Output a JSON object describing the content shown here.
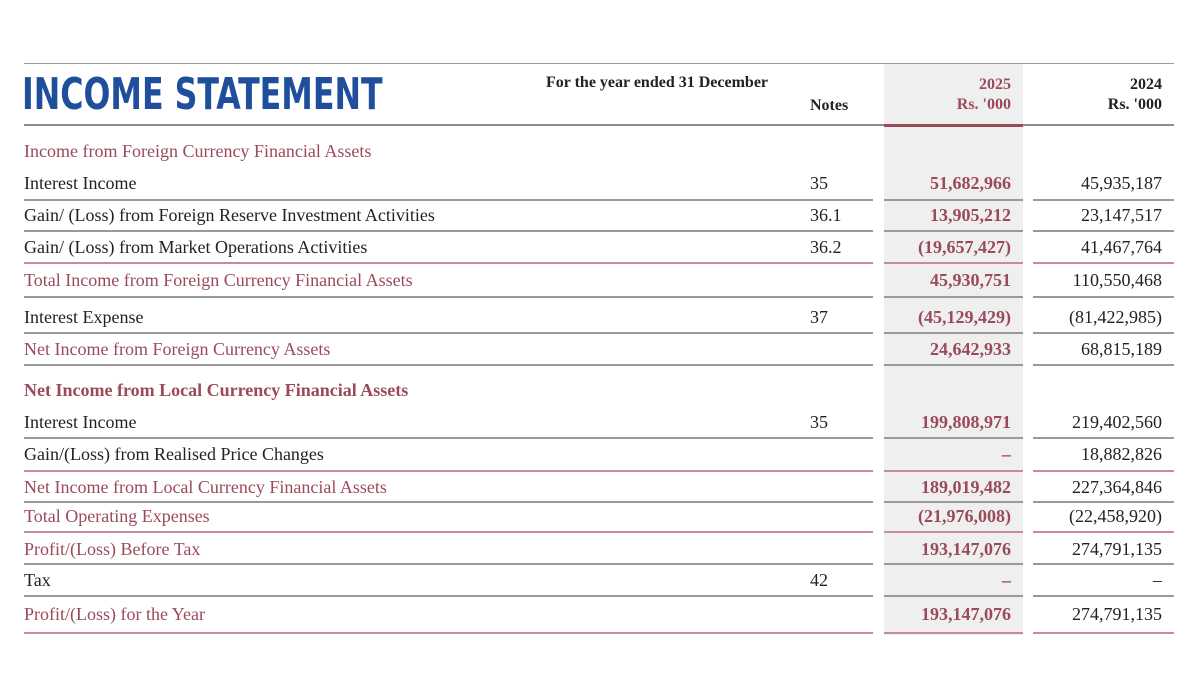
{
  "title": "INCOME STATEMENT",
  "period": "For the year ended 31 December",
  "columns": {
    "notes": "Notes",
    "current": {
      "year": "2025",
      "unit": "Rs. '000"
    },
    "previous": {
      "year": "2024",
      "unit": "Rs. '000"
    }
  },
  "rows": [
    {
      "label": "Income from Foreign Currency Financial Assets",
      "note": "",
      "v2025": "",
      "v2024": "",
      "style": "sub"
    },
    {
      "label": "Interest Income",
      "note": "35",
      "v2025": "51,682,966",
      "v2024": "45,935,187",
      "style": "normal"
    },
    {
      "label": "Gain/ (Loss) from Foreign Reserve Investment Activities",
      "note": "36.1",
      "v2025": "13,905,212",
      "v2024": "23,147,517",
      "style": "normal"
    },
    {
      "label": "Gain/ (Loss) from Market Operations Activities",
      "note": "36.2",
      "v2025": "(19,657,427)",
      "v2024": "41,467,764",
      "style": "normal"
    },
    {
      "label": "Total Income from Foreign Currency Financial Assets",
      "note": "",
      "v2025": "45,930,751",
      "v2024": "110,550,468",
      "style": "sub"
    },
    {
      "label": "Interest Expense",
      "note": "37",
      "v2025": "(45,129,429)",
      "v2024": "(81,422,985)",
      "style": "normal"
    },
    {
      "label": "Net Income from Foreign Currency Assets",
      "note": "",
      "v2025": "24,642,933",
      "v2024": "68,815,189",
      "style": "sub"
    },
    {
      "label": "Net Income from Local Currency Financial Assets",
      "note": "",
      "v2025": "",
      "v2024": "",
      "style": "sub-bold"
    },
    {
      "label": "Interest Income",
      "note": "35",
      "v2025": "199,808,971",
      "v2024": "219,402,560",
      "style": "normal"
    },
    {
      "label": "Gain/(Loss) from Realised Price Changes",
      "note": "",
      "v2025": "–",
      "v2024": "18,882,826",
      "style": "normal"
    },
    {
      "label": "Net Income from Local Currency Financial Assets",
      "note": "",
      "v2025": "189,019,482",
      "v2024": "227,364,846",
      "style": "sub"
    },
    {
      "label": "Total Operating Expenses",
      "note": "",
      "v2025": "(21,976,008)",
      "v2024": "(22,458,920)",
      "style": "sub"
    },
    {
      "label": "Profit/(Loss) Before Tax",
      "note": "",
      "v2025": "193,147,076",
      "v2024": "274,791,135",
      "style": "sub"
    },
    {
      "label": "Tax",
      "note": "42",
      "v2025": "–",
      "v2024": "–",
      "style": "normal"
    },
    {
      "label": "Profit/(Loss) for the Year",
      "note": "",
      "v2025": "193,147,076",
      "v2024": "274,791,135",
      "style": "sub"
    }
  ]
}
